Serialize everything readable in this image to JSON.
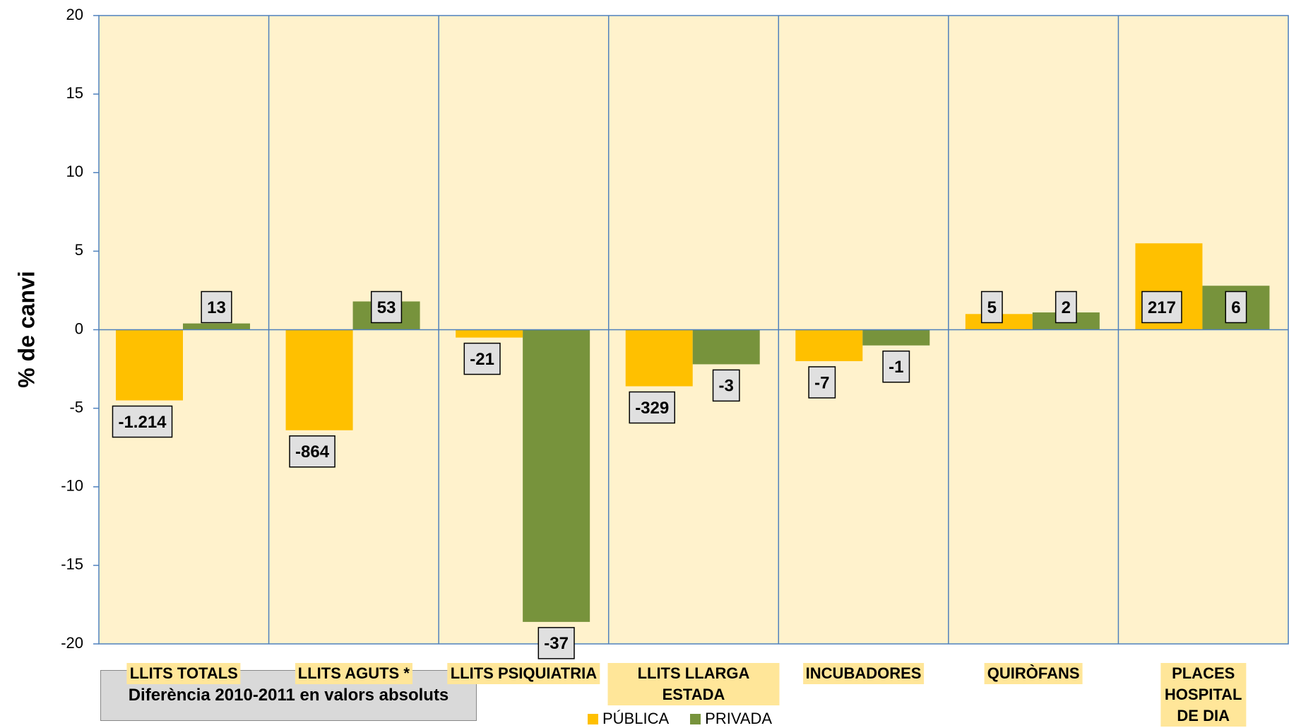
{
  "chart_data": {
    "type": "bar",
    "y_label": "% de  canvi",
    "note": "Diferència  2010-2011 en valors absoluts",
    "categories": [
      "LLITS TOTALS",
      "LLITS AGUTS *",
      "LLITS PSIQUIATRIA",
      "LLITS LLARGA ESTADA",
      "INCUBADORES",
      "QUIRÒFANS",
      "PLACES HOSPITAL DE DIA"
    ],
    "series": [
      {
        "name": "PÚBLICA",
        "color": "#FFC000",
        "values": [
          -4.5,
          -6.4,
          -0.5,
          -3.6,
          -2.0,
          1.0,
          5.5
        ],
        "difference_labels": [
          "-1.214",
          "-864",
          "-21",
          "-329",
          "-7",
          "5",
          "217"
        ]
      },
      {
        "name": "PRIVADA",
        "color": "#77933C",
        "values": [
          0.4,
          1.8,
          -18.6,
          -2.2,
          -1.0,
          1.1,
          2.8
        ],
        "difference_labels": [
          "13",
          "53",
          "-37",
          "-3",
          "-1",
          "2",
          "6"
        ]
      }
    ],
    "ylim": [
      -20,
      20
    ],
    "yticks": [
      -20,
      -15,
      -10,
      -5,
      0,
      5,
      10,
      15,
      20
    ],
    "plot_background": "#FFF2CC",
    "separator_color": "#4F81BD"
  }
}
